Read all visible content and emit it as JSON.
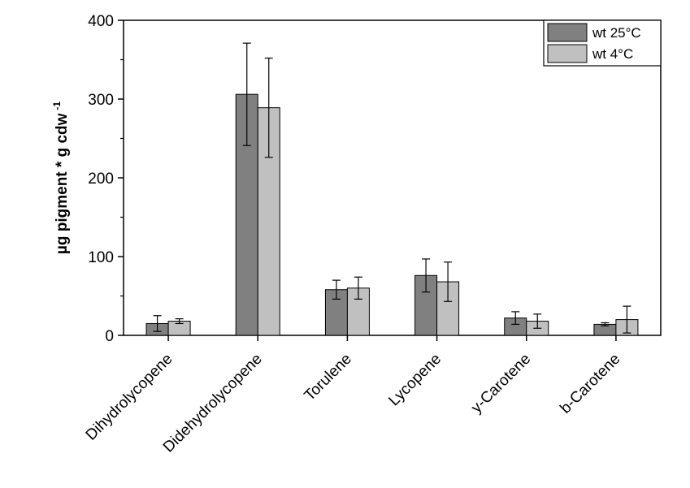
{
  "chart_data": {
    "type": "bar",
    "categories": [
      "Dihydrolycopene",
      "Didehydrolycopene",
      "Torulene",
      "Lycopene",
      "y-Carotene",
      "b-Carotene"
    ],
    "series": [
      {
        "name": "wt 25°C",
        "color": "#808080",
        "values": [
          15,
          306,
          58,
          76,
          22,
          14
        ],
        "errors": [
          10,
          65,
          12,
          21,
          8,
          2
        ]
      },
      {
        "name": "wt 4°C",
        "color": "#c0c0c0",
        "values": [
          18,
          289,
          60,
          68,
          18,
          20
        ],
        "errors": [
          3,
          63,
          14,
          25,
          9,
          17
        ]
      }
    ],
    "title": "",
    "xlabel": "",
    "ylabel": "µg pigment * g cdw",
    "ylabel_superscript": "-1",
    "ylim": [
      0,
      400
    ],
    "yticks": [
      0,
      100,
      200,
      300,
      400
    ],
    "legend_position": "top-right",
    "grid": false
  }
}
